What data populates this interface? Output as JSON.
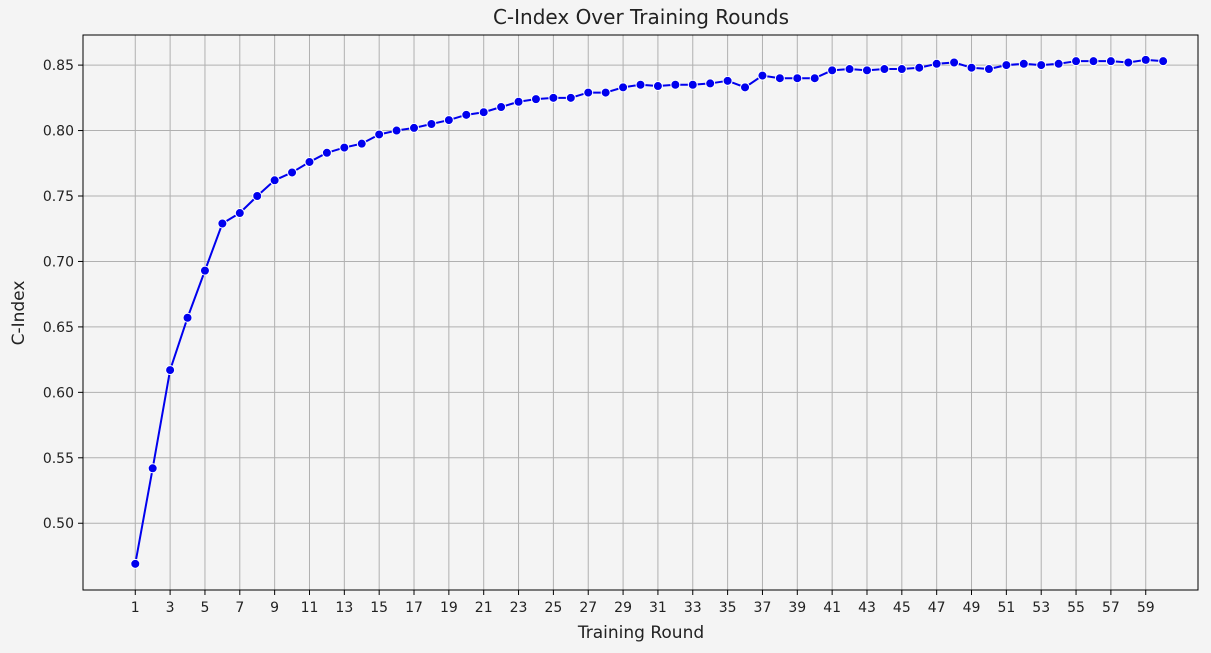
{
  "chart_data": {
    "type": "line",
    "title": "C-Index Over Training Rounds",
    "xlabel": "Training Round",
    "ylabel": "C-Index",
    "xlim": [
      -2,
      62
    ],
    "ylim": [
      0.449,
      0.873
    ],
    "x_ticks": [
      1,
      3,
      5,
      7,
      9,
      11,
      13,
      15,
      17,
      19,
      21,
      23,
      25,
      27,
      29,
      31,
      33,
      35,
      37,
      39,
      41,
      43,
      45,
      47,
      49,
      51,
      53,
      55,
      57,
      59
    ],
    "y_ticks": [
      0.5,
      0.55,
      0.6,
      0.65,
      0.7,
      0.75,
      0.8,
      0.85
    ],
    "y_tick_labels": [
      "0.50",
      "0.55",
      "0.60",
      "0.65",
      "0.70",
      "0.75",
      "0.80",
      "0.85"
    ],
    "grid": true,
    "line_color": "#0000ee",
    "grid_color": "#b0b0b0",
    "series": [
      {
        "x": [
          1,
          2,
          3,
          4,
          5,
          6,
          7,
          8,
          9,
          10,
          11,
          12,
          13,
          14,
          15,
          16,
          17,
          18,
          19,
          20,
          21,
          22,
          23,
          24,
          25,
          26,
          27,
          28,
          29,
          30,
          31,
          32,
          33,
          34,
          35,
          36,
          37,
          38,
          39,
          40,
          41,
          42,
          43,
          44,
          45,
          46,
          47,
          48,
          49,
          50,
          51,
          52,
          53,
          54,
          55,
          56,
          57,
          58,
          59,
          60
        ],
        "values": [
          0.469,
          0.542,
          0.617,
          0.657,
          0.693,
          0.729,
          0.737,
          0.75,
          0.762,
          0.768,
          0.776,
          0.783,
          0.787,
          0.79,
          0.797,
          0.8,
          0.802,
          0.805,
          0.808,
          0.812,
          0.814,
          0.818,
          0.822,
          0.824,
          0.825,
          0.825,
          0.829,
          0.829,
          0.833,
          0.835,
          0.834,
          0.835,
          0.835,
          0.836,
          0.838,
          0.833,
          0.842,
          0.84,
          0.84,
          0.84,
          0.846,
          0.847,
          0.846,
          0.847,
          0.847,
          0.848,
          0.851,
          0.852,
          0.848,
          0.847,
          0.85,
          0.851,
          0.85,
          0.851,
          0.853,
          0.853,
          0.853,
          0.852,
          0.854,
          0.853
        ]
      }
    ]
  }
}
